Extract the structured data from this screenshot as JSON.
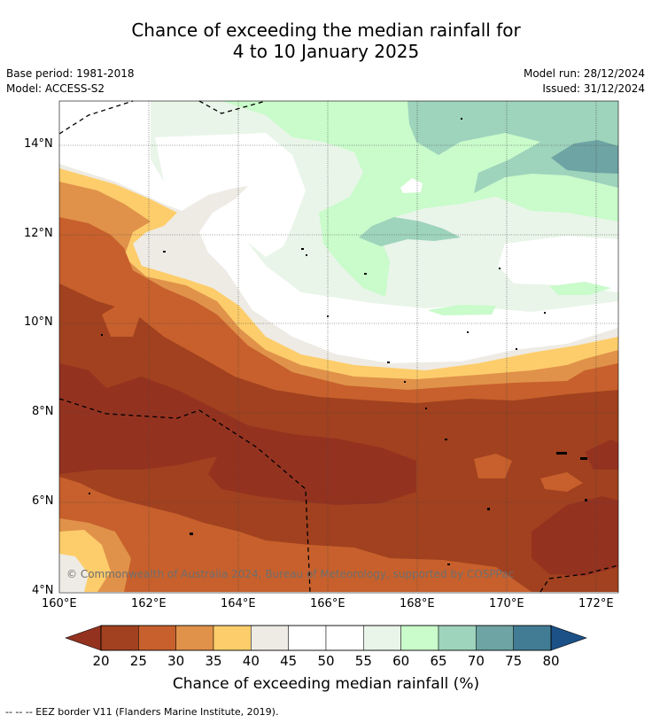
{
  "header": {
    "title_line1": "Chance of exceeding the median rainfall for",
    "title_line2": "4 to 10 January 2025",
    "base_period": "Base period: 1981-2018",
    "model": "Model: ACCESS-S2",
    "model_run": "Model run: 28/12/2024",
    "issued": "Issued: 31/12/2024"
  },
  "map": {
    "lat_range": [
      4,
      15
    ],
    "lon_range": [
      160,
      172.5
    ],
    "lat_ticks": [
      "4°N",
      "6°N",
      "8°N",
      "10°N",
      "12°N",
      "14°N"
    ],
    "lon_ticks": [
      "160°E",
      "162°E",
      "164°E",
      "166°E",
      "168°E",
      "170°E",
      "172°E"
    ],
    "copyright": "© Commonwealth of Australia 2024, Bureau of Meteorology, supported by COSPPac"
  },
  "colorbar": {
    "labels": [
      "20",
      "25",
      "30",
      "35",
      "40",
      "45",
      "50",
      "55",
      "60",
      "65",
      "70",
      "75",
      "80"
    ],
    "colors": [
      "#a1411f",
      "#c7602c",
      "#e0924a",
      "#fdcd6b",
      "#eeebe5",
      "#ffffff",
      "#ffffff",
      "#e9f5e9",
      "#c9fbcb",
      "#9ed3bc",
      "#6ea4a3",
      "#427c94"
    ],
    "under_color": "#943220",
    "over_color": "#1c5188",
    "title": "Chance of exceeding median rainfall (%)"
  },
  "legend": {
    "footnote": "--  --  -- EEZ border V11 (Flanders Marine Institute, 2019)."
  }
}
